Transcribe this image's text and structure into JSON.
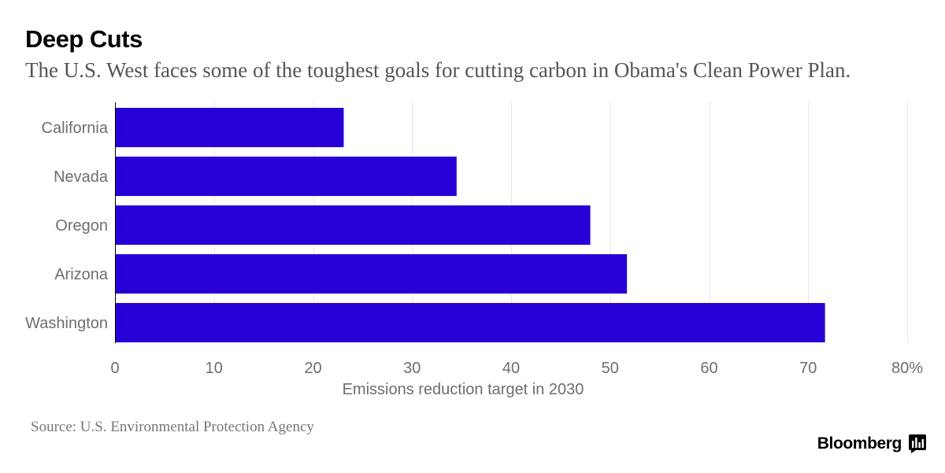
{
  "header": {
    "title": "Deep Cuts",
    "subtitle": "The U.S. West faces some of the toughest goals for cutting carbon in Obama's Clean Power Plan."
  },
  "footer": {
    "source": "Source: U.S. Environmental Protection Agency",
    "brand": "Bloomberg"
  },
  "colors": {
    "bar": "#2800d7",
    "grid": "#e6e6e6",
    "axis": "#000000",
    "tick_label": "#6e6e6e"
  },
  "chart_data": {
    "type": "bar",
    "orientation": "horizontal",
    "title": "Deep Cuts",
    "subtitle": "The U.S. West faces some of the toughest goals for cutting carbon in Obama's Clean Power Plan.",
    "categories": [
      "California",
      "Nevada",
      "Oregon",
      "Arizona",
      "Washington"
    ],
    "values": [
      23.1,
      34.5,
      48.0,
      51.7,
      71.7
    ],
    "xlabel": "Emissions reduction target in 2030",
    "ylabel": "",
    "xlim": [
      0,
      80
    ],
    "x_ticks": [
      0,
      10,
      20,
      30,
      40,
      50,
      60,
      70,
      80
    ],
    "x_tick_labels": [
      "0",
      "10",
      "20",
      "30",
      "40",
      "50",
      "60",
      "70",
      "80%"
    ],
    "grid": "vertical",
    "legend": "none"
  }
}
